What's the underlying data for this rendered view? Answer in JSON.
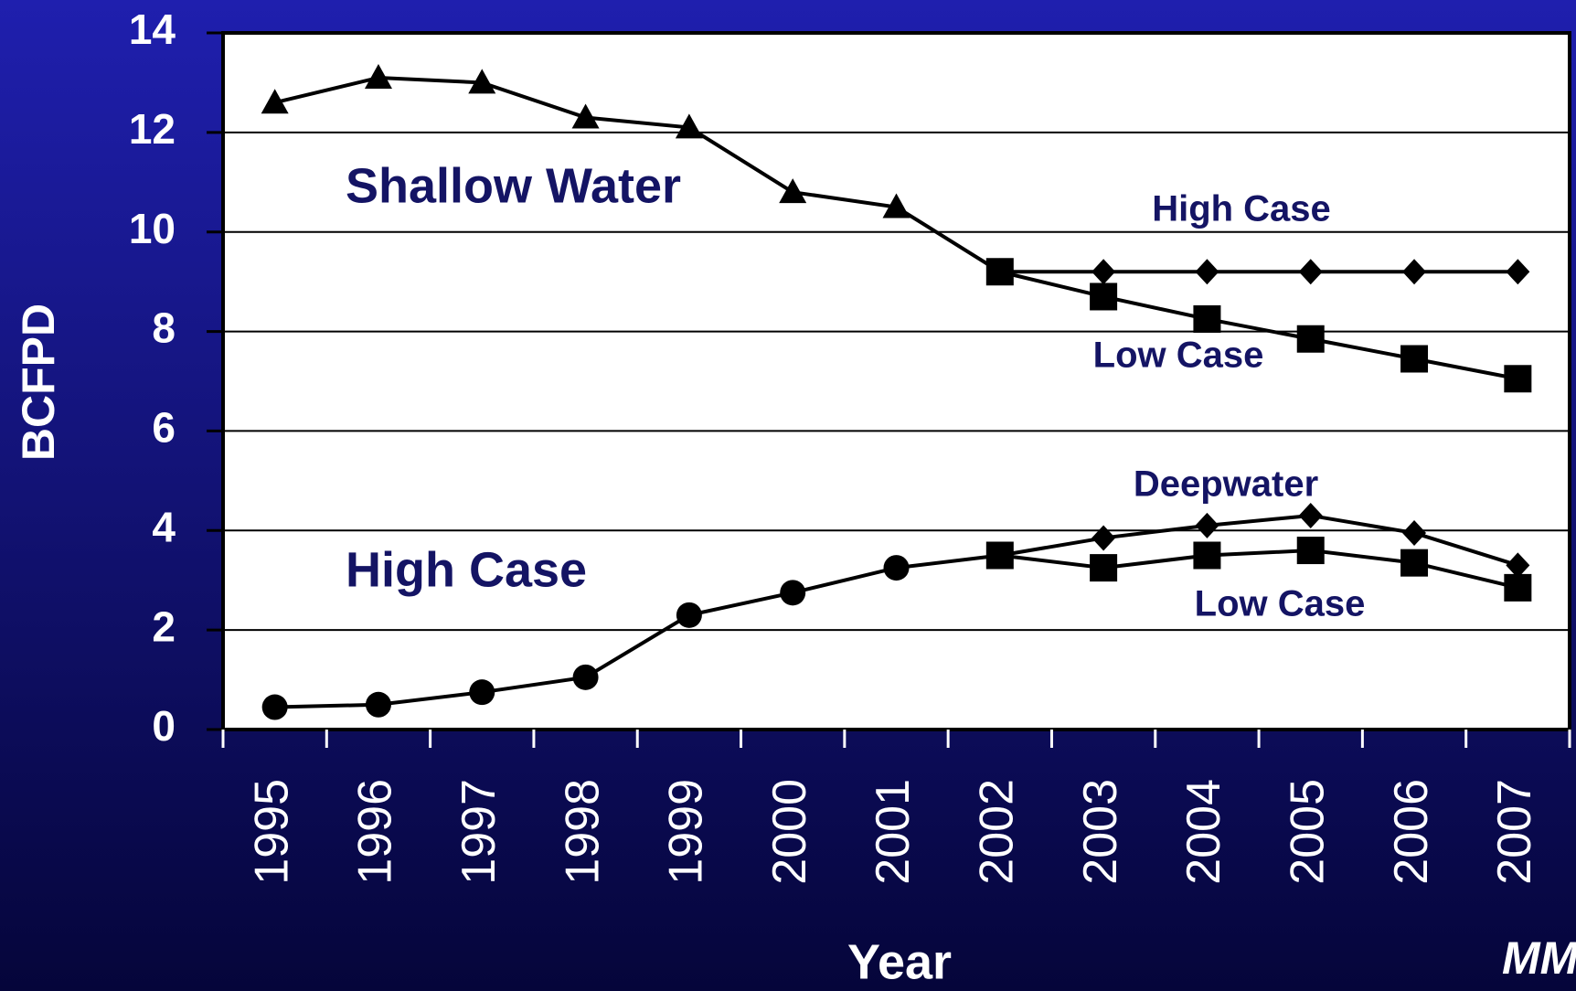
{
  "chart_data": {
    "type": "line",
    "x_label": "Year",
    "y_label": "BCFPD",
    "categories": [
      "1995",
      "1996",
      "1997",
      "1998",
      "1999",
      "2000",
      "2001",
      "2002",
      "2003",
      "2004",
      "2005",
      "2006",
      "2007"
    ],
    "series": [
      {
        "color": "#000000",
        "marker": "triangle",
        "values": [
          12.6,
          13.1,
          13.0,
          12.3,
          12.1,
          10.8,
          10.5,
          9.2,
          null,
          null,
          null,
          null,
          null
        ]
      },
      {
        "color": "#000000",
        "marker": "diamond",
        "values": [
          null,
          null,
          null,
          null,
          null,
          null,
          null,
          9.2,
          9.2,
          9.2,
          9.2,
          9.2,
          9.2
        ]
      },
      {
        "color": "#000000",
        "marker": "square",
        "values": [
          null,
          null,
          null,
          null,
          null,
          null,
          null,
          9.2,
          8.7,
          8.25,
          7.85,
          7.45,
          7.05
        ]
      },
      {
        "color": "#000000",
        "marker": "circle",
        "values": [
          0.45,
          0.5,
          0.75,
          1.05,
          2.3,
          2.75,
          3.25,
          3.5,
          null,
          null,
          null,
          null,
          null
        ]
      },
      {
        "color": "#000000",
        "marker": "diamond",
        "values": [
          null,
          null,
          null,
          null,
          null,
          null,
          null,
          3.5,
          3.85,
          4.1,
          4.3,
          3.95,
          3.3
        ]
      },
      {
        "color": "#000000",
        "marker": "square",
        "values": [
          null,
          null,
          null,
          null,
          null,
          null,
          null,
          3.5,
          3.25,
          3.5,
          3.6,
          3.35,
          2.85
        ]
      }
    ],
    "annotations": [
      "Shallow Water",
      "High Case",
      "Low Case",
      "Deepwater",
      "High Case",
      "Low Case",
      "MM"
    ],
    "ylim": [
      0,
      14
    ],
    "yticks": [
      0,
      2,
      4,
      6,
      8,
      10,
      12,
      14
    ],
    "grid": true
  }
}
